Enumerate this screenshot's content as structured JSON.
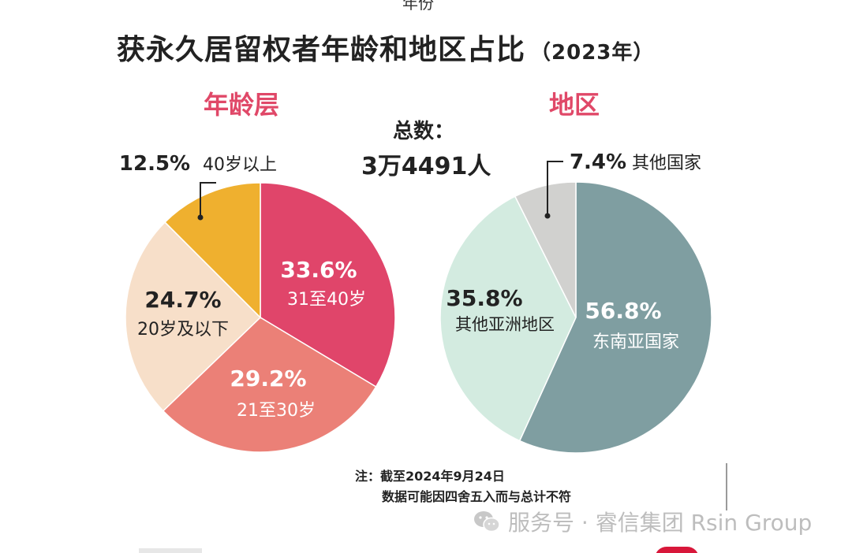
{
  "top_cut_text": "年份",
  "title": "获永久居留权者年龄和地区占比",
  "title_year": "（2023年）",
  "total": {
    "label": "总数：",
    "value": "3万4491人"
  },
  "chart_data": [
    {
      "type": "pie",
      "title": "年龄层",
      "slices": [
        {
          "label": "31至40岁",
          "value": 33.6,
          "pct_label": "33.6%",
          "color": "#e0456a"
        },
        {
          "label": "21至30岁",
          "value": 29.2,
          "pct_label": "29.2%",
          "color": "#eb8077"
        },
        {
          "label": "20岁及以下",
          "value": 24.7,
          "pct_label": "24.7%",
          "color": "#f7dfc9"
        },
        {
          "label": "40岁以上",
          "value": 12.5,
          "pct_label": "12.5%",
          "color": "#efb02f"
        }
      ]
    },
    {
      "type": "pie",
      "title": "地区",
      "slices": [
        {
          "label": "东南亚国家",
          "value": 56.8,
          "pct_label": "56.8%",
          "color": "#7f9ea1"
        },
        {
          "label": "其他亚洲地区",
          "value": 35.8,
          "pct_label": "35.8%",
          "color": "#d3ebe0"
        },
        {
          "label": "其他国家",
          "value": 7.4,
          "pct_label": "7.4%",
          "color": "#d1d1cf"
        }
      ]
    }
  ],
  "note": {
    "line1": "注：截至2024年9月24日",
    "line2": "数据可能因四舍五入而与总计不符"
  },
  "watermark": "服务号 · 睿信集团 Rsin Group"
}
